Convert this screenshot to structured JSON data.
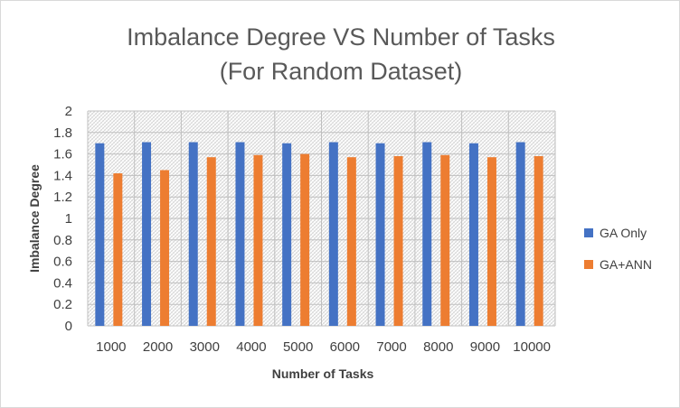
{
  "chart_data": {
    "type": "bar",
    "title": "Imbalance Degree VS Number of Tasks",
    "subtitle": "(For Random Dataset)",
    "xlabel": "Number of Tasks",
    "ylabel": "Imbalance Degree",
    "categories": [
      "1000",
      "2000",
      "3000",
      "4000",
      "5000",
      "6000",
      "7000",
      "8000",
      "9000",
      "10000"
    ],
    "series": [
      {
        "name": "GA Only",
        "color": "#4472c4",
        "values": [
          1.7,
          1.71,
          1.71,
          1.71,
          1.7,
          1.71,
          1.7,
          1.71,
          1.7,
          1.71
        ]
      },
      {
        "name": "GA+ANN",
        "color": "#ed7d31",
        "values": [
          1.42,
          1.45,
          1.57,
          1.59,
          1.6,
          1.57,
          1.58,
          1.59,
          1.57,
          1.58
        ]
      }
    ],
    "ylim": [
      0,
      2
    ],
    "yticks": [
      "0",
      "0.2",
      "0.4",
      "0.6",
      "0.8",
      "1",
      "1.2",
      "1.4",
      "1.6",
      "1.8",
      "2"
    ],
    "grid": true,
    "legend_position": "right"
  }
}
